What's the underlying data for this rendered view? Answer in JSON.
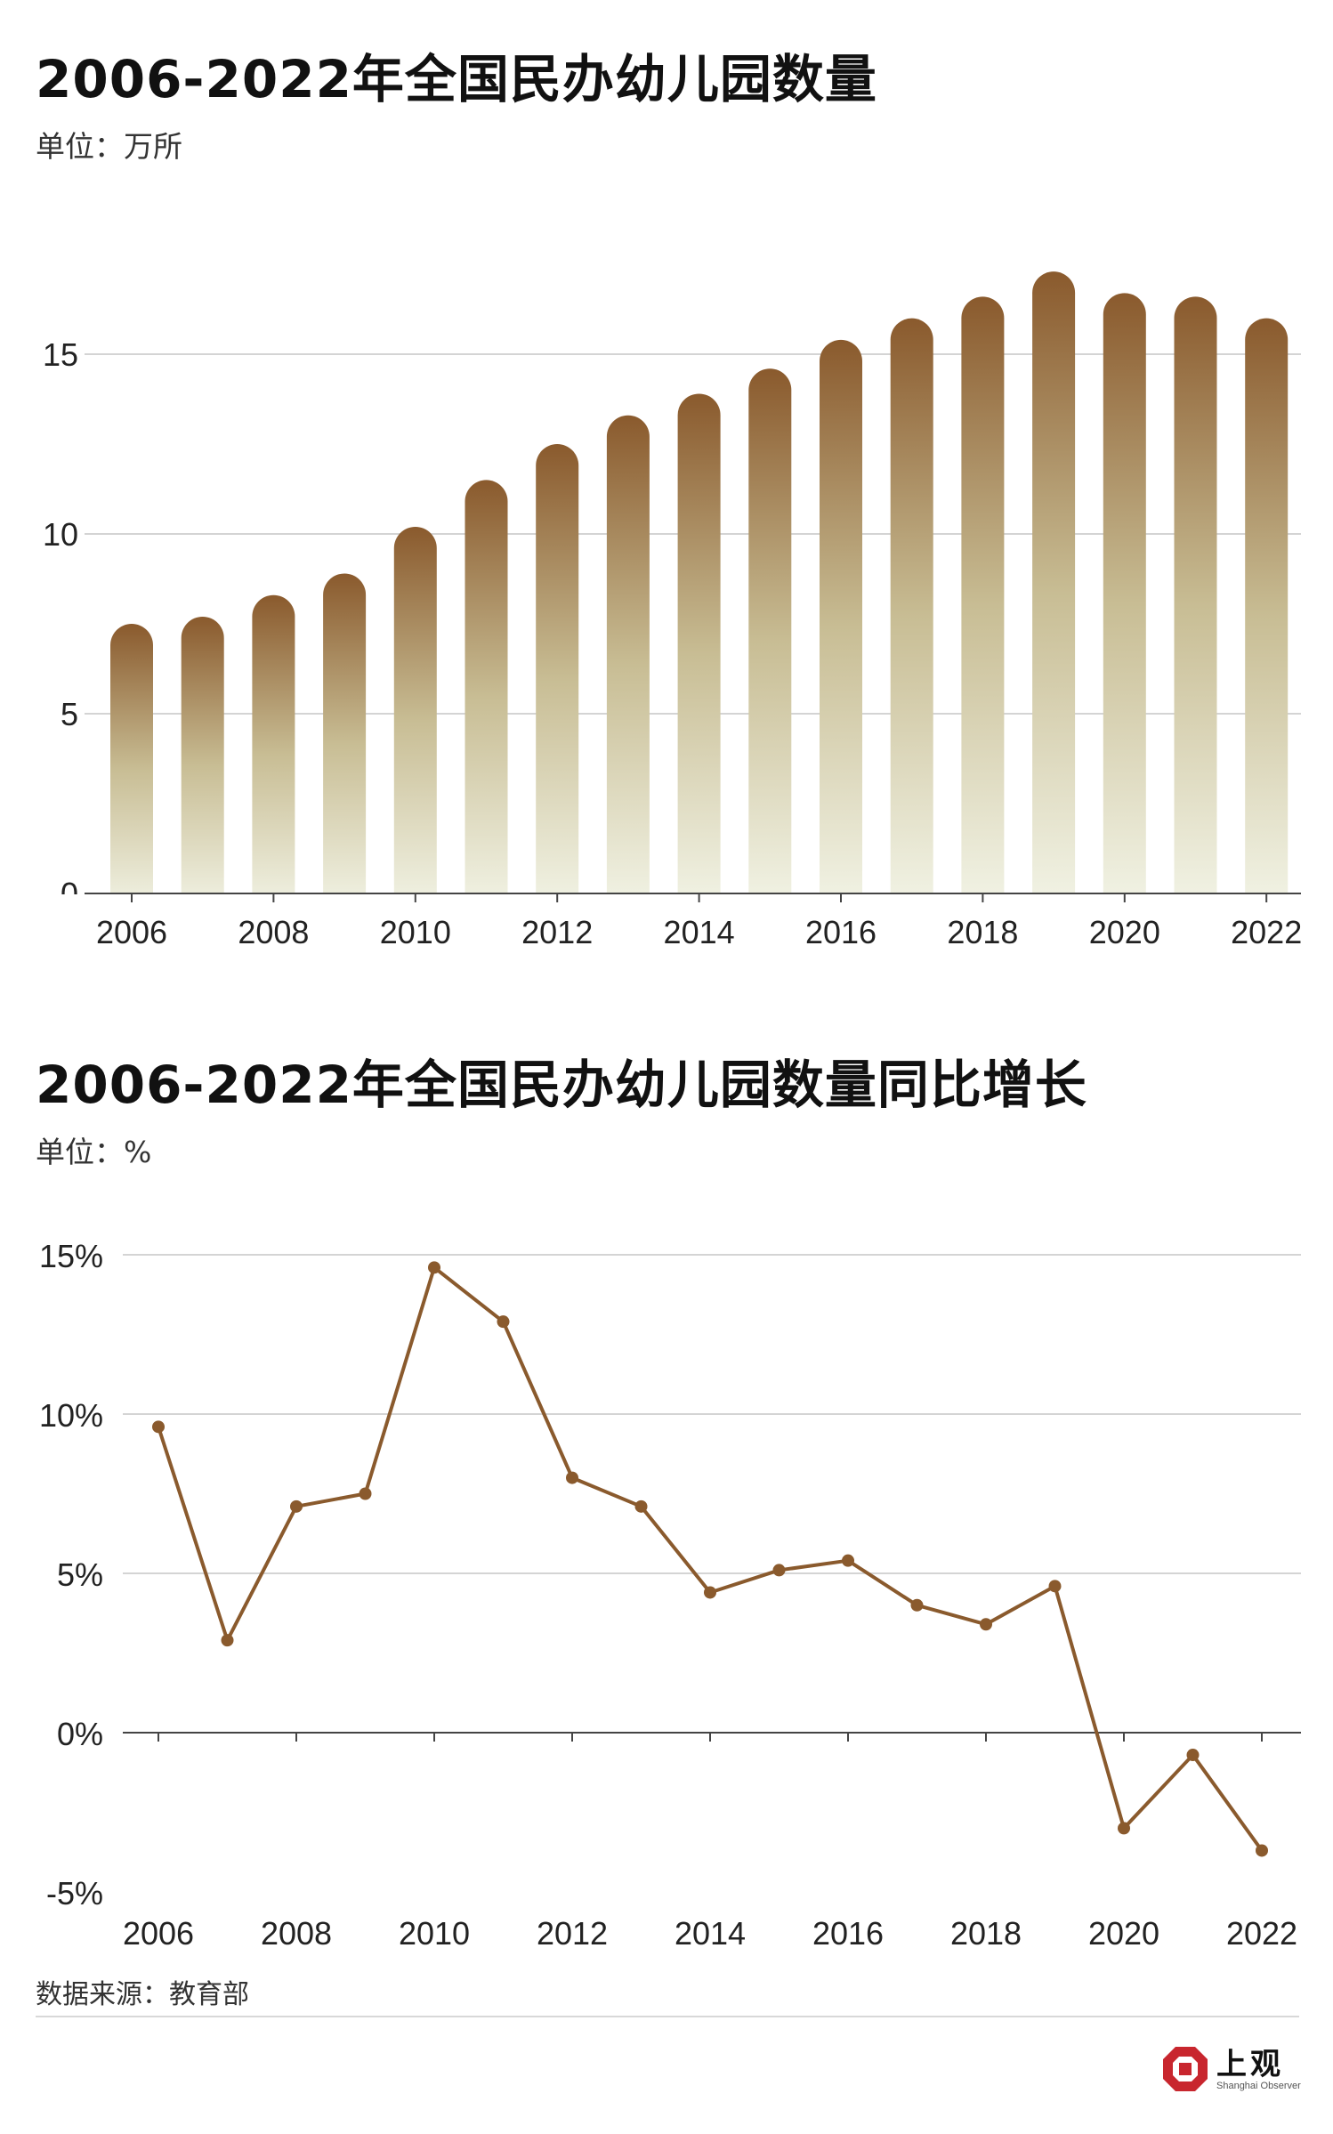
{
  "charts": [
    {
      "title": "2006-2022年全国民办幼儿园数量",
      "unit": "单位：万所",
      "chart_data": {
        "type": "bar",
        "x": [
          2006,
          2007,
          2008,
          2009,
          2010,
          2011,
          2012,
          2013,
          2014,
          2015,
          2016,
          2017,
          2018,
          2019,
          2020,
          2021,
          2022
        ],
        "values": [
          7.5,
          7.7,
          8.3,
          8.9,
          10.2,
          11.5,
          12.5,
          13.3,
          13.9,
          14.6,
          15.4,
          16.0,
          16.6,
          17.3,
          16.7,
          16.6,
          16.0
        ],
        "ylim": [
          0,
          17.6
        ],
        "yticks": [
          0,
          5,
          10,
          15
        ],
        "xticks": [
          2006,
          2008,
          2010,
          2012,
          2014,
          2016,
          2018,
          2020,
          2022
        ],
        "grid": true,
        "colors": {
          "top": "#8a5a2d",
          "bottom": "#f3f5e8"
        }
      }
    },
    {
      "title": "2006-2022年全国民办幼儿园数量同比增长",
      "unit": "单位：%",
      "chart_data": {
        "type": "line",
        "x": [
          2006,
          2007,
          2008,
          2009,
          2010,
          2011,
          2012,
          2013,
          2014,
          2015,
          2016,
          2017,
          2018,
          2019,
          2020,
          2021,
          2022
        ],
        "values": [
          9.6,
          2.9,
          7.1,
          7.5,
          14.6,
          12.9,
          8.0,
          7.1,
          4.4,
          5.1,
          5.4,
          4.0,
          3.4,
          4.6,
          -3.0,
          -0.7,
          -3.7
        ],
        "ylim": [
          -5,
          15
        ],
        "yticks": [
          -5,
          0,
          5,
          10,
          15
        ],
        "ytick_labels": [
          "-5%",
          "0%",
          "5%",
          "10%",
          "15%"
        ],
        "xticks": [
          2006,
          2008,
          2010,
          2012,
          2014,
          2016,
          2018,
          2020,
          2022
        ],
        "grid": true,
        "colors": {
          "line": "#8a5a2d"
        }
      }
    }
  ],
  "source": "数据来源：教育部",
  "logo": {
    "text": "上观",
    "sub": "Shanghai Observer",
    "color": "#c8262e"
  }
}
